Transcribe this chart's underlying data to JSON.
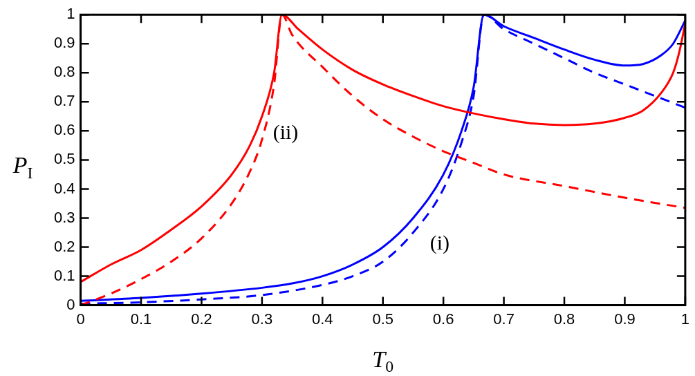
{
  "chart_data": {
    "type": "line",
    "xlabel": "T$_{0}$",
    "ylabel": "P$_{I}$",
    "xlim": [
      0,
      1
    ],
    "ylim": [
      0,
      1
    ],
    "xticks": [
      0,
      0.1,
      0.2,
      0.3,
      0.4,
      0.5,
      0.6,
      0.7,
      0.8,
      0.9,
      1
    ],
    "yticks": [
      0,
      0.1,
      0.2,
      0.3,
      0.4,
      0.5,
      0.6,
      0.7,
      0.8,
      0.9,
      1
    ],
    "grid": false,
    "legend": false,
    "marker": "none",
    "annotations": [
      "(i)",
      "(ii)"
    ],
    "series": [
      {
        "color": "#ff0000",
        "line_style": "solid",
        "x": [
          0,
          0.05,
          0.1,
          0.15,
          0.2,
          0.25,
          0.28,
          0.3,
          0.32,
          0.333,
          0.36,
          0.4,
          0.45,
          0.5,
          0.55,
          0.6,
          0.65,
          0.7,
          0.75,
          0.8,
          0.85,
          0.9,
          0.93,
          0.96,
          0.98,
          0.99,
          1
        ],
        "values": [
          0.08,
          0.14,
          0.19,
          0.26,
          0.34,
          0.45,
          0.55,
          0.65,
          0.8,
          1,
          0.95,
          0.88,
          0.81,
          0.76,
          0.72,
          0.685,
          0.66,
          0.64,
          0.625,
          0.62,
          0.625,
          0.645,
          0.67,
          0.73,
          0.8,
          0.87,
          0.97
        ]
      },
      {
        "color": "#ff0000",
        "line_style": "dashed",
        "x": [
          0,
          0.05,
          0.1,
          0.15,
          0.2,
          0.25,
          0.28,
          0.3,
          0.32,
          0.333,
          0.35,
          0.4,
          0.45,
          0.5,
          0.55,
          0.6,
          0.65,
          0.7,
          0.8,
          0.9,
          1
        ],
        "values": [
          0,
          0.04,
          0.09,
          0.15,
          0.23,
          0.35,
          0.46,
          0.57,
          0.76,
          1,
          0.93,
          0.82,
          0.72,
          0.64,
          0.58,
          0.53,
          0.49,
          0.45,
          0.41,
          0.37,
          0.335
        ]
      },
      {
        "color": "#0000ff",
        "line_style": "solid",
        "x": [
          0,
          0.1,
          0.2,
          0.3,
          0.35,
          0.4,
          0.45,
          0.5,
          0.55,
          0.6,
          0.63,
          0.65,
          0.667,
          0.7,
          0.75,
          0.8,
          0.85,
          0.9,
          0.93,
          0.96,
          0.98,
          1
        ],
        "values": [
          0.015,
          0.025,
          0.04,
          0.06,
          0.075,
          0.1,
          0.14,
          0.2,
          0.3,
          0.45,
          0.6,
          0.75,
          1,
          0.96,
          0.92,
          0.88,
          0.845,
          0.825,
          0.83,
          0.86,
          0.9,
          0.98
        ]
      },
      {
        "color": "#0000ff",
        "line_style": "dashed",
        "x": [
          0,
          0.1,
          0.2,
          0.3,
          0.4,
          0.45,
          0.5,
          0.55,
          0.6,
          0.63,
          0.65,
          0.667,
          0.7,
          0.75,
          0.8,
          0.85,
          0.9,
          0.95,
          1
        ],
        "values": [
          0.005,
          0.01,
          0.02,
          0.035,
          0.07,
          0.1,
          0.15,
          0.25,
          0.4,
          0.56,
          0.72,
          1,
          0.95,
          0.9,
          0.85,
          0.8,
          0.76,
          0.72,
          0.68
        ]
      }
    ]
  }
}
